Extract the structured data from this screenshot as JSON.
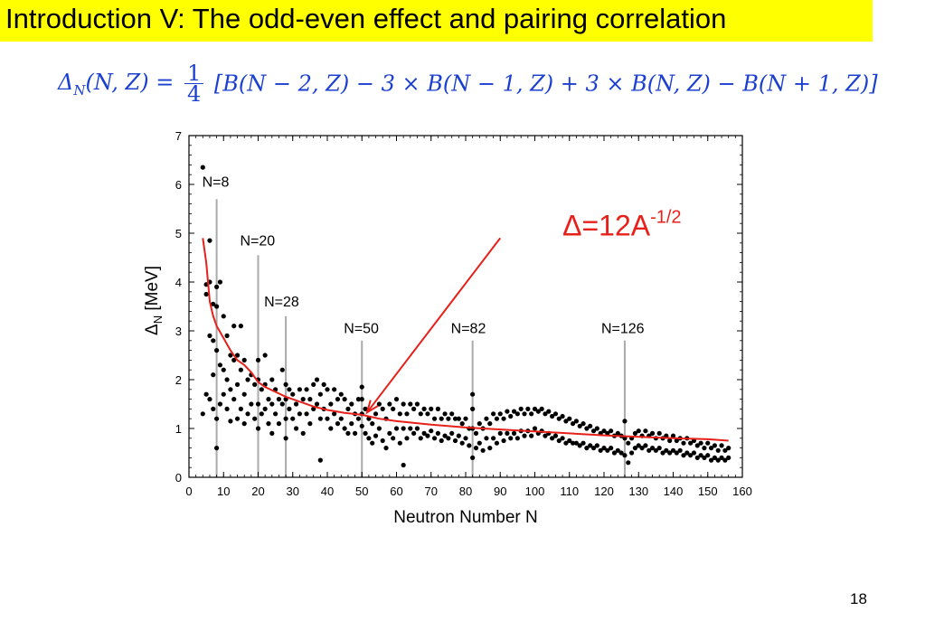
{
  "slide": {
    "title": "Introduction V: The odd-even effect and pairing correlation",
    "formula_lhs": "Δ",
    "formula_sub": "N",
    "formula_args": "(N, Z) =",
    "formula_num": "1",
    "formula_den": "4",
    "formula_rhs": "[B(N − 2, Z) − 3 × B(N − 1, Z) + 3 × B(N, Z) − B(N + 1, Z)]",
    "page_number": "18",
    "colors": {
      "title_bg": "#ffff00",
      "formula": "#1a3fd1",
      "fit_curve": "#e8201a",
      "shell_lines": "#aaaaaa"
    }
  },
  "chart_data": {
    "type": "scatter",
    "xlabel": "Neutron Number N",
    "ylabel_main": "Δ",
    "ylabel_sub": "N",
    "ylabel_unit": " [MeV]",
    "xlim": [
      0,
      160
    ],
    "ylim": [
      0,
      7
    ],
    "xticks": [
      0,
      10,
      20,
      30,
      40,
      50,
      60,
      70,
      80,
      90,
      100,
      110,
      120,
      130,
      140,
      150,
      160
    ],
    "yticks": [
      0,
      1,
      2,
      3,
      4,
      5,
      6,
      7
    ],
    "grid": false,
    "magic_numbers": [
      {
        "n": 8,
        "label": "N=8",
        "top": 5.7
      },
      {
        "n": 20,
        "label": "N=20",
        "top": 4.55
      },
      {
        "n": 28,
        "label": "N=28",
        "top": 3.3
      },
      {
        "n": 50,
        "label": "N=50",
        "top": 2.8
      },
      {
        "n": 82,
        "label": "N=82",
        "top": 2.8
      },
      {
        "n": 126,
        "label": "N=126",
        "top": 2.8
      }
    ],
    "fit": {
      "label_main": "Δ=12A",
      "label_sup": "-1/2",
      "points": [
        [
          4,
          4.9
        ],
        [
          5,
          4.4
        ],
        [
          6,
          3.6
        ],
        [
          7,
          3.3
        ],
        [
          8,
          3.1
        ],
        [
          10,
          2.85
        ],
        [
          12,
          2.6
        ],
        [
          14,
          2.4
        ],
        [
          16,
          2.3
        ],
        [
          18,
          2.15
        ],
        [
          20,
          1.95
        ],
        [
          22,
          1.85
        ],
        [
          25,
          1.75
        ],
        [
          28,
          1.65
        ],
        [
          32,
          1.55
        ],
        [
          36,
          1.45
        ],
        [
          40,
          1.38
        ],
        [
          45,
          1.32
        ],
        [
          50,
          1.28
        ],
        [
          55,
          1.2
        ],
        [
          60,
          1.15
        ],
        [
          70,
          1.08
        ],
        [
          80,
          1.02
        ],
        [
          90,
          0.98
        ],
        [
          100,
          0.94
        ],
        [
          110,
          0.9
        ],
        [
          120,
          0.86
        ],
        [
          130,
          0.83
        ],
        [
          140,
          0.8
        ],
        [
          150,
          0.78
        ],
        [
          156,
          0.75
        ]
      ]
    },
    "points": [
      [
        4,
        6.35
      ],
      [
        4,
        1.3
      ],
      [
        5,
        3.95
      ],
      [
        5,
        3.75
      ],
      [
        5,
        1.7
      ],
      [
        6,
        4.85
      ],
      [
        6,
        4.0
      ],
      [
        6,
        2.9
      ],
      [
        6,
        1.6
      ],
      [
        7,
        3.55
      ],
      [
        7,
        2.8
      ],
      [
        7,
        2.1
      ],
      [
        7,
        1.4
      ],
      [
        8,
        3.5
      ],
      [
        8,
        3.9
      ],
      [
        8,
        2.6
      ],
      [
        8,
        1.2
      ],
      [
        8,
        0.6
      ],
      [
        9,
        2.3
      ],
      [
        9,
        1.5
      ],
      [
        9,
        4.0
      ],
      [
        10,
        3.3
      ],
      [
        10,
        2.2
      ],
      [
        10,
        1.7
      ],
      [
        11,
        2.0
      ],
      [
        11,
        1.4
      ],
      [
        11,
        2.9
      ],
      [
        12,
        2.5
      ],
      [
        12,
        1.8
      ],
      [
        12,
        1.15
      ],
      [
        13,
        3.1
      ],
      [
        13,
        2.4
      ],
      [
        13,
        1.6
      ],
      [
        14,
        2.5
      ],
      [
        14,
        1.9
      ],
      [
        14,
        1.2
      ],
      [
        15,
        3.1
      ],
      [
        15,
        2.2
      ],
      [
        15,
        1.4
      ],
      [
        16,
        2.4
      ],
      [
        16,
        1.7
      ],
      [
        16,
        1.1
      ],
      [
        17,
        2.0
      ],
      [
        17,
        1.3
      ],
      [
        18,
        2.1
      ],
      [
        18,
        1.5
      ],
      [
        19,
        1.9
      ],
      [
        19,
        1.2
      ],
      [
        20,
        2.4
      ],
      [
        20,
        2.0
      ],
      [
        20,
        1.5
      ],
      [
        20,
        1.0
      ],
      [
        21,
        1.8
      ],
      [
        21,
        1.3
      ],
      [
        22,
        2.5
      ],
      [
        22,
        1.9
      ],
      [
        22,
        1.4
      ],
      [
        23,
        1.6
      ],
      [
        23,
        1.1
      ],
      [
        24,
        2.0
      ],
      [
        24,
        1.5
      ],
      [
        24,
        0.9
      ],
      [
        25,
        1.8
      ],
      [
        25,
        1.3
      ],
      [
        26,
        1.6
      ],
      [
        26,
        1.1
      ],
      [
        27,
        2.2
      ],
      [
        27,
        1.5
      ],
      [
        28,
        1.9
      ],
      [
        28,
        1.6
      ],
      [
        28,
        1.2
      ],
      [
        28,
        0.8
      ],
      [
        29,
        1.8
      ],
      [
        29,
        1.4
      ],
      [
        30,
        1.7
      ],
      [
        30,
        1.2
      ],
      [
        31,
        1.5
      ],
      [
        31,
        1.0
      ],
      [
        32,
        1.8
      ],
      [
        32,
        1.3
      ],
      [
        33,
        1.6
      ],
      [
        33,
        0.9
      ],
      [
        34,
        1.8
      ],
      [
        34,
        1.3
      ],
      [
        35,
        1.6
      ],
      [
        35,
        1.1
      ],
      [
        36,
        1.9
      ],
      [
        36,
        1.4
      ],
      [
        37,
        2.0
      ],
      [
        37,
        1.5
      ],
      [
        38,
        1.7
      ],
      [
        38,
        1.2
      ],
      [
        38,
        0.35
      ],
      [
        39,
        1.9
      ],
      [
        39,
        1.4
      ],
      [
        40,
        1.8
      ],
      [
        40,
        1.2
      ],
      [
        41,
        1.5
      ],
      [
        41,
        1.0
      ],
      [
        42,
        1.8
      ],
      [
        42,
        1.3
      ],
      [
        43,
        1.6
      ],
      [
        43,
        1.1
      ],
      [
        44,
        1.7
      ],
      [
        44,
        1.2
      ],
      [
        45,
        1.6
      ],
      [
        45,
        1.0
      ],
      [
        46,
        1.4
      ],
      [
        46,
        0.9
      ],
      [
        47,
        1.5
      ],
      [
        47,
        1.1
      ],
      [
        48,
        1.3
      ],
      [
        48,
        0.9
      ],
      [
        49,
        1.6
      ],
      [
        49,
        1.2
      ],
      [
        50,
        1.85
      ],
      [
        50,
        1.6
      ],
      [
        50,
        1.3
      ],
      [
        50,
        1.05
      ],
      [
        51,
        1.4
      ],
      [
        51,
        0.9
      ],
      [
        52,
        1.2
      ],
      [
        52,
        0.8
      ],
      [
        53,
        1.1
      ],
      [
        53,
        0.7
      ],
      [
        54,
        1.3
      ],
      [
        54,
        0.85
      ],
      [
        55,
        1.5
      ],
      [
        55,
        1.0
      ],
      [
        56,
        1.4
      ],
      [
        56,
        0.75
      ],
      [
        57,
        1.2
      ],
      [
        57,
        0.6
      ],
      [
        58,
        1.5
      ],
      [
        58,
        0.9
      ],
      [
        59,
        1.4
      ],
      [
        59,
        0.8
      ],
      [
        60,
        1.6
      ],
      [
        60,
        1.0
      ],
      [
        61,
        1.3
      ],
      [
        61,
        0.7
      ],
      [
        62,
        1.5
      ],
      [
        62,
        1.0
      ],
      [
        62,
        0.25
      ],
      [
        63,
        1.3
      ],
      [
        63,
        0.8
      ],
      [
        64,
        1.5
      ],
      [
        64,
        1.0
      ],
      [
        65,
        1.4
      ],
      [
        65,
        0.9
      ],
      [
        66,
        1.5
      ],
      [
        66,
        1.0
      ],
      [
        67,
        1.3
      ],
      [
        67,
        0.8
      ],
      [
        68,
        1.4
      ],
      [
        68,
        0.9
      ],
      [
        69,
        1.3
      ],
      [
        69,
        0.85
      ],
      [
        70,
        1.4
      ],
      [
        70,
        0.95
      ],
      [
        71,
        1.2
      ],
      [
        71,
        0.8
      ],
      [
        72,
        1.4
      ],
      [
        72,
        0.9
      ],
      [
        73,
        1.2
      ],
      [
        73,
        0.75
      ],
      [
        74,
        1.3
      ],
      [
        74,
        0.85
      ],
      [
        75,
        1.2
      ],
      [
        75,
        0.8
      ],
      [
        76,
        1.3
      ],
      [
        76,
        0.9
      ],
      [
        77,
        1.2
      ],
      [
        77,
        0.75
      ],
      [
        78,
        1.2
      ],
      [
        78,
        0.85
      ],
      [
        79,
        1.1
      ],
      [
        79,
        0.7
      ],
      [
        80,
        1.2
      ],
      [
        80,
        0.8
      ],
      [
        81,
        1.0
      ],
      [
        81,
        0.65
      ],
      [
        82,
        1.7
      ],
      [
        82,
        1.4
      ],
      [
        82,
        1.0
      ],
      [
        82,
        0.4
      ],
      [
        83,
        0.9
      ],
      [
        83,
        0.6
      ],
      [
        84,
        1.1
      ],
      [
        84,
        0.7
      ],
      [
        85,
        1.0
      ],
      [
        85,
        0.55
      ],
      [
        86,
        1.2
      ],
      [
        86,
        0.8
      ],
      [
        87,
        1.1
      ],
      [
        87,
        0.6
      ],
      [
        88,
        1.3
      ],
      [
        88,
        0.8
      ],
      [
        89,
        1.2
      ],
      [
        89,
        0.7
      ],
      [
        90,
        1.3
      ],
      [
        90,
        0.9
      ],
      [
        91,
        1.2
      ],
      [
        91,
        0.75
      ],
      [
        92,
        1.35
      ],
      [
        92,
        0.9
      ],
      [
        93,
        1.25
      ],
      [
        93,
        0.8
      ],
      [
        94,
        1.35
      ],
      [
        94,
        0.9
      ],
      [
        95,
        1.3
      ],
      [
        95,
        0.8
      ],
      [
        96,
        1.4
      ],
      [
        96,
        0.95
      ],
      [
        97,
        1.3
      ],
      [
        97,
        0.85
      ],
      [
        98,
        1.4
      ],
      [
        98,
        0.95
      ],
      [
        99,
        1.3
      ],
      [
        99,
        0.85
      ],
      [
        100,
        1.4
      ],
      [
        100,
        1.0
      ],
      [
        101,
        1.35
      ],
      [
        101,
        0.9
      ],
      [
        102,
        1.4
      ],
      [
        102,
        0.95
      ],
      [
        103,
        1.3
      ],
      [
        103,
        0.85
      ],
      [
        104,
        1.35
      ],
      [
        104,
        0.9
      ],
      [
        105,
        1.25
      ],
      [
        105,
        0.8
      ],
      [
        106,
        1.3
      ],
      [
        106,
        0.85
      ],
      [
        107,
        1.2
      ],
      [
        107,
        0.75
      ],
      [
        108,
        1.25
      ],
      [
        108,
        0.8
      ],
      [
        109,
        1.15
      ],
      [
        109,
        0.7
      ],
      [
        110,
        1.2
      ],
      [
        110,
        0.75
      ],
      [
        111,
        1.1
      ],
      [
        111,
        0.7
      ],
      [
        112,
        1.15
      ],
      [
        112,
        0.7
      ],
      [
        113,
        1.05
      ],
      [
        113,
        0.65
      ],
      [
        114,
        1.1
      ],
      [
        114,
        0.7
      ],
      [
        115,
        1.0
      ],
      [
        115,
        0.6
      ],
      [
        116,
        1.05
      ],
      [
        116,
        0.65
      ],
      [
        117,
        0.95
      ],
      [
        117,
        0.6
      ],
      [
        118,
        1.0
      ],
      [
        118,
        0.65
      ],
      [
        119,
        0.9
      ],
      [
        119,
        0.55
      ],
      [
        120,
        0.95
      ],
      [
        120,
        0.6
      ],
      [
        121,
        0.9
      ],
      [
        121,
        0.55
      ],
      [
        122,
        0.95
      ],
      [
        122,
        0.6
      ],
      [
        123,
        0.85
      ],
      [
        123,
        0.5
      ],
      [
        124,
        0.9
      ],
      [
        124,
        0.55
      ],
      [
        125,
        0.85
      ],
      [
        125,
        0.5
      ],
      [
        126,
        1.15
      ],
      [
        126,
        0.8
      ],
      [
        126,
        0.45
      ],
      [
        127,
        0.7
      ],
      [
        127,
        0.3
      ],
      [
        128,
        0.8
      ],
      [
        128,
        0.5
      ],
      [
        129,
        0.9
      ],
      [
        129,
        0.6
      ],
      [
        130,
        0.95
      ],
      [
        130,
        0.65
      ],
      [
        131,
        0.85
      ],
      [
        131,
        0.6
      ],
      [
        132,
        0.95
      ],
      [
        132,
        0.65
      ],
      [
        133,
        0.85
      ],
      [
        133,
        0.55
      ],
      [
        134,
        0.9
      ],
      [
        134,
        0.6
      ],
      [
        135,
        0.8
      ],
      [
        135,
        0.55
      ],
      [
        136,
        0.9
      ],
      [
        136,
        0.6
      ],
      [
        137,
        0.8
      ],
      [
        137,
        0.5
      ],
      [
        138,
        0.85
      ],
      [
        138,
        0.55
      ],
      [
        139,
        0.75
      ],
      [
        139,
        0.5
      ],
      [
        140,
        0.85
      ],
      [
        140,
        0.55
      ],
      [
        141,
        0.75
      ],
      [
        141,
        0.5
      ],
      [
        142,
        0.8
      ],
      [
        142,
        0.55
      ],
      [
        143,
        0.7
      ],
      [
        143,
        0.45
      ],
      [
        144,
        0.8
      ],
      [
        144,
        0.5
      ],
      [
        145,
        0.7
      ],
      [
        145,
        0.45
      ],
      [
        146,
        0.75
      ],
      [
        146,
        0.5
      ],
      [
        147,
        0.65
      ],
      [
        147,
        0.4
      ],
      [
        148,
        0.7
      ],
      [
        148,
        0.45
      ],
      [
        149,
        0.6
      ],
      [
        149,
        0.4
      ],
      [
        150,
        0.7
      ],
      [
        150,
        0.45
      ],
      [
        151,
        0.6
      ],
      [
        151,
        0.35
      ],
      [
        152,
        0.65
      ],
      [
        152,
        0.4
      ],
      [
        153,
        0.55
      ],
      [
        153,
        0.35
      ],
      [
        154,
        0.65
      ],
      [
        154,
        0.4
      ],
      [
        155,
        0.55
      ],
      [
        155,
        0.35
      ],
      [
        156,
        0.6
      ],
      [
        156,
        0.4
      ]
    ]
  }
}
